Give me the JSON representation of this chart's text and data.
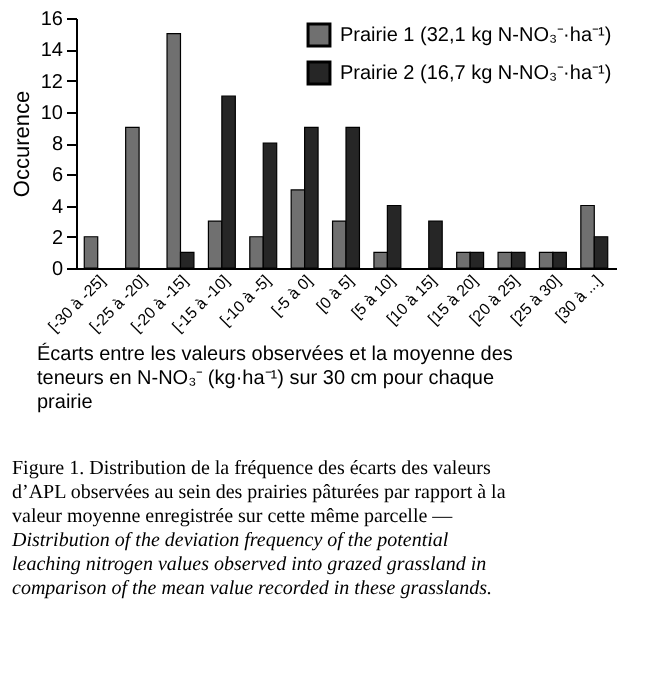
{
  "chart_data": {
    "type": "bar",
    "ylabel": "Occurence",
    "xlabel": "Écarts entre les valeurs observées et la moyenne des teneurs en N-NO₃⁻ (kg·ha⁻¹) sur 30 cm pour chaque prairie",
    "categories": [
      "[-30 à -25]",
      "[-25 à -20]",
      "[-20 à -15]",
      "[-15 à -10]",
      "[-10 à -5]",
      "[-5 à 0]",
      "[0 à 5]",
      "[5 à 10]",
      "[10 à 15]",
      "[15 à 20]",
      "[20 à 25]",
      "[25 à 30]",
      "[30 à ...]"
    ],
    "series": [
      {
        "name": "Prairie 1 (32,1 kg N-NO₃⁻·ha⁻¹)",
        "color": "#707070",
        "values": [
          2,
          9,
          15,
          3,
          2,
          5,
          3,
          1,
          0,
          1,
          1,
          1,
          4
        ]
      },
      {
        "name": "Prairie 2 (16,7 kg N-NO₃⁻·ha⁻¹)",
        "color": "#262626",
        "values": [
          0,
          0,
          1,
          11,
          8,
          9,
          9,
          4,
          3,
          1,
          1,
          1,
          2
        ]
      }
    ],
    "ylim": [
      0,
      16
    ],
    "yticks": [
      0,
      2,
      4,
      6,
      8,
      10,
      12,
      14,
      16
    ],
    "grid": false,
    "legend": "top right",
    "annotations": [
      "Figure 1. Distribution de la fréquence des écarts des valeurs d’APL observées au sein des prairies pâturées par rapport à la valeur moyenne enregistrée sur cette même parcelle —",
      "Distribution of the deviation frequency of the potential leaching nitrogen values observed into grazed grassland in comparison of the mean value recorded in these grasslands."
    ]
  }
}
